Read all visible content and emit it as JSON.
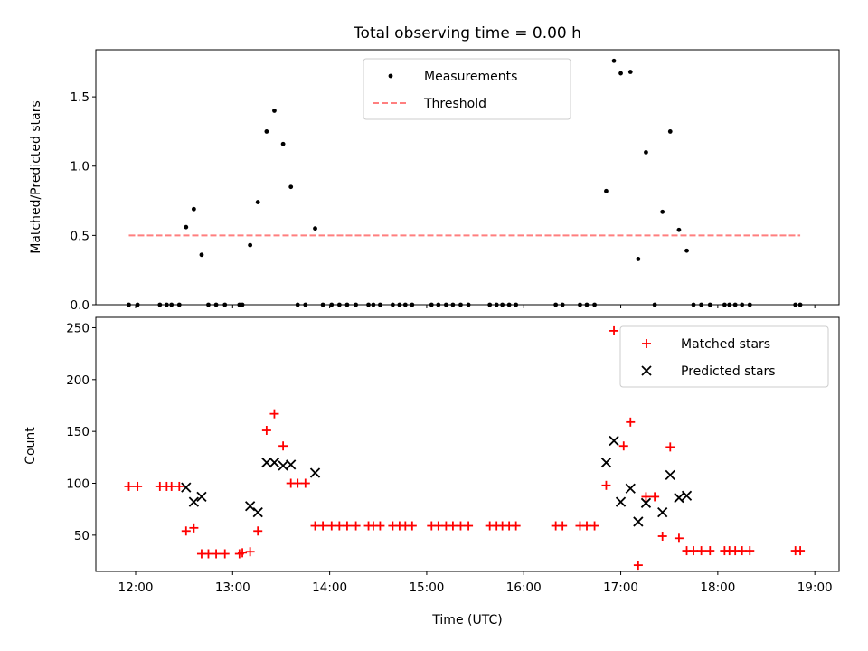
{
  "chart_data": {
    "title": "Total observing time = 0.00 h",
    "xlabel": "Time (UTC)",
    "x_tick_labels": [
      "12:00",
      "13:00",
      "14:00",
      "15:00",
      "16:00",
      "17:00",
      "18:00",
      "19:00"
    ],
    "x_ticks_hours": [
      12,
      13,
      14,
      15,
      16,
      17,
      18,
      19
    ],
    "xlim_hours": [
      11.59,
      19.25
    ],
    "panels": [
      {
        "id": "ratio",
        "type": "scatter",
        "ylabel": "Matched/Predicted stars",
        "ylim": [
          0,
          1.84
        ],
        "y_ticks": [
          0.0,
          0.5,
          1.0,
          1.5
        ],
        "y_tick_labels": [
          "0.0",
          "0.5",
          "1.0",
          "1.5"
        ],
        "legend": {
          "position": "top-center",
          "entries": [
            {
              "label": "Measurements",
              "marker": "dot",
              "color": "#000000"
            },
            {
              "label": "Threshold",
              "marker": "dashed-line",
              "color": "#ff7f7f"
            }
          ]
        },
        "threshold": {
          "value": 0.5,
          "x_start": 11.93,
          "x_end": 18.85,
          "color": "#ff7f7f"
        },
        "series": [
          {
            "name": "Measurements",
            "color": "#000000",
            "points": [
              [
                11.93,
                0
              ],
              [
                12.02,
                0
              ],
              [
                12.25,
                0
              ],
              [
                12.32,
                0
              ],
              [
                12.37,
                0
              ],
              [
                12.45,
                0
              ],
              [
                12.52,
                0.56
              ],
              [
                12.6,
                0.69
              ],
              [
                12.68,
                0.36
              ],
              [
                12.75,
                0
              ],
              [
                12.83,
                0
              ],
              [
                12.92,
                0
              ],
              [
                13.07,
                0
              ],
              [
                13.1,
                0
              ],
              [
                13.18,
                0.43
              ],
              [
                13.26,
                0.74
              ],
              [
                13.35,
                1.25
              ],
              [
                13.43,
                1.4
              ],
              [
                13.52,
                1.16
              ],
              [
                13.6,
                0.85
              ],
              [
                13.67,
                0
              ],
              [
                13.75,
                0
              ],
              [
                13.85,
                0.55
              ],
              [
                13.93,
                0
              ],
              [
                14.02,
                0
              ],
              [
                14.1,
                0
              ],
              [
                14.18,
                0
              ],
              [
                14.27,
                0
              ],
              [
                14.4,
                0
              ],
              [
                14.45,
                0
              ],
              [
                14.52,
                0
              ],
              [
                14.65,
                0
              ],
              [
                14.72,
                0
              ],
              [
                14.78,
                0
              ],
              [
                14.85,
                0
              ],
              [
                15.05,
                0
              ],
              [
                15.12,
                0
              ],
              [
                15.2,
                0
              ],
              [
                15.27,
                0
              ],
              [
                15.35,
                0
              ],
              [
                15.43,
                0
              ],
              [
                15.65,
                0
              ],
              [
                15.72,
                0
              ],
              [
                15.78,
                0
              ],
              [
                15.85,
                0
              ],
              [
                15.92,
                0
              ],
              [
                16.33,
                0
              ],
              [
                16.4,
                0
              ],
              [
                16.58,
                0
              ],
              [
                16.65,
                0
              ],
              [
                16.73,
                0
              ],
              [
                16.85,
                0.82
              ],
              [
                16.93,
                1.76
              ],
              [
                17.0,
                1.67
              ],
              [
                17.1,
                1.68
              ],
              [
                17.18,
                0.33
              ],
              [
                17.26,
                1.1
              ],
              [
                17.35,
                0
              ],
              [
                17.43,
                0.67
              ],
              [
                17.51,
                1.25
              ],
              [
                17.6,
                0.54
              ],
              [
                17.68,
                0.39
              ],
              [
                17.75,
                0
              ],
              [
                17.83,
                0
              ],
              [
                17.92,
                0
              ],
              [
                18.07,
                0
              ],
              [
                18.12,
                0
              ],
              [
                18.18,
                0
              ],
              [
                18.25,
                0
              ],
              [
                18.33,
                0
              ],
              [
                18.8,
                0
              ],
              [
                18.85,
                0
              ]
            ]
          }
        ]
      },
      {
        "id": "counts",
        "type": "scatter",
        "ylabel": "Count",
        "ylim": [
          15,
          260
        ],
        "y_ticks": [
          50,
          100,
          150,
          200,
          250
        ],
        "y_tick_labels": [
          "50",
          "100",
          "150",
          "200",
          "250"
        ],
        "legend": {
          "position": "top-right",
          "entries": [
            {
              "label": "Matched stars",
              "marker": "plus",
              "color": "#ff0000"
            },
            {
              "label": "Predicted stars",
              "marker": "x",
              "color": "#000000"
            }
          ]
        },
        "series": [
          {
            "name": "Matched stars",
            "marker": "plus",
            "color": "#ff0000",
            "points": [
              [
                11.93,
                97
              ],
              [
                12.02,
                97
              ],
              [
                12.25,
                97
              ],
              [
                12.32,
                97
              ],
              [
                12.37,
                97
              ],
              [
                12.45,
                97
              ],
              [
                12.52,
                54
              ],
              [
                12.6,
                57
              ],
              [
                12.68,
                32
              ],
              [
                12.75,
                32
              ],
              [
                12.83,
                32
              ],
              [
                12.92,
                32
              ],
              [
                13.07,
                32
              ],
              [
                13.1,
                33
              ],
              [
                13.18,
                34
              ],
              [
                13.26,
                54
              ],
              [
                13.35,
                151
              ],
              [
                13.43,
                167
              ],
              [
                13.52,
                136
              ],
              [
                13.6,
                100
              ],
              [
                13.67,
                100
              ],
              [
                13.75,
                100
              ],
              [
                13.85,
                59
              ],
              [
                13.93,
                59
              ],
              [
                14.02,
                59
              ],
              [
                14.1,
                59
              ],
              [
                14.18,
                59
              ],
              [
                14.27,
                59
              ],
              [
                14.4,
                59
              ],
              [
                14.45,
                59
              ],
              [
                14.52,
                59
              ],
              [
                14.65,
                59
              ],
              [
                14.72,
                59
              ],
              [
                14.78,
                59
              ],
              [
                14.85,
                59
              ],
              [
                15.05,
                59
              ],
              [
                15.12,
                59
              ],
              [
                15.2,
                59
              ],
              [
                15.27,
                59
              ],
              [
                15.35,
                59
              ],
              [
                15.43,
                59
              ],
              [
                15.65,
                59
              ],
              [
                15.72,
                59
              ],
              [
                15.78,
                59
              ],
              [
                15.85,
                59
              ],
              [
                15.92,
                59
              ],
              [
                16.33,
                59
              ],
              [
                16.4,
                59
              ],
              [
                16.58,
                59
              ],
              [
                16.65,
                59
              ],
              [
                16.73,
                59
              ],
              [
                16.85,
                98
              ],
              [
                16.93,
                247
              ],
              [
                17.03,
                136
              ],
              [
                17.1,
                159
              ],
              [
                17.18,
                21
              ],
              [
                17.26,
                87
              ],
              [
                17.35,
                87
              ],
              [
                17.43,
                49
              ],
              [
                17.51,
                135
              ],
              [
                17.6,
                47
              ],
              [
                17.68,
                35
              ],
              [
                17.75,
                35
              ],
              [
                17.83,
                35
              ],
              [
                17.92,
                35
              ],
              [
                18.07,
                35
              ],
              [
                18.12,
                35
              ],
              [
                18.18,
                35
              ],
              [
                18.25,
                35
              ],
              [
                18.33,
                35
              ],
              [
                18.8,
                35
              ],
              [
                18.85,
                35
              ]
            ]
          },
          {
            "name": "Predicted stars",
            "marker": "x",
            "color": "#000000",
            "points": [
              [
                12.52,
                96
              ],
              [
                12.6,
                82
              ],
              [
                12.68,
                87
              ],
              [
                13.18,
                78
              ],
              [
                13.26,
                72
              ],
              [
                13.35,
                120
              ],
              [
                13.43,
                120
              ],
              [
                13.52,
                117
              ],
              [
                13.6,
                118
              ],
              [
                13.85,
                110
              ],
              [
                16.85,
                120
              ],
              [
                16.93,
                141
              ],
              [
                17.0,
                82
              ],
              [
                17.1,
                95
              ],
              [
                17.18,
                63
              ],
              [
                17.26,
                81
              ],
              [
                17.43,
                72
              ],
              [
                17.51,
                108
              ],
              [
                17.6,
                86
              ],
              [
                17.68,
                88
              ]
            ]
          }
        ]
      }
    ]
  }
}
